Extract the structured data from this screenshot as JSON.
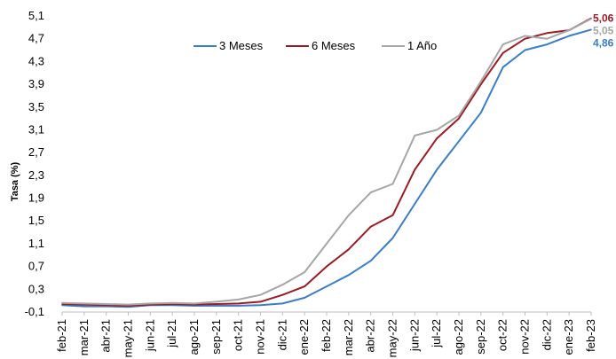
{
  "chart_data": {
    "type": "line",
    "ylabel": "Tasa (%)",
    "xlabel": "",
    "ylim": [
      -0.1,
      5.1
    ],
    "yticks": [
      "-0,1",
      "0,3",
      "0,7",
      "1,1",
      "1,5",
      "1,9",
      "2,3",
      "2,7",
      "3,1",
      "3,5",
      "3,9",
      "4,3",
      "4,7",
      "5,1"
    ],
    "x": [
      "feb-21",
      "mar-21",
      "abr-21",
      "may-21",
      "jun-21",
      "jul-21",
      "ago-21",
      "sep-21",
      "oct-21",
      "nov-21",
      "dic-21",
      "ene-22",
      "feb-22",
      "mar-22",
      "abr-22",
      "may-22",
      "jun-22",
      "jul-22",
      "ago-22",
      "sep-22",
      "oct-22",
      "nov-22",
      "dic-22",
      "ene-23",
      "feb-23"
    ],
    "legend_position": "top-right",
    "grid": false,
    "series": [
      {
        "name": "3 Meses",
        "color": "#3a7dc9",
        "end_label": "4,86",
        "values": [
          0.02,
          0.0,
          0.0,
          -0.01,
          0.02,
          0.02,
          0.01,
          0.01,
          0.01,
          0.02,
          0.05,
          0.15,
          0.35,
          0.55,
          0.8,
          1.2,
          1.8,
          2.4,
          2.9,
          3.4,
          4.2,
          4.5,
          4.6,
          4.75,
          4.86
        ]
      },
      {
        "name": "6 Meses",
        "color": "#9b1b24",
        "end_label": "5,06",
        "values": [
          0.04,
          0.03,
          0.02,
          0.01,
          0.03,
          0.04,
          0.03,
          0.04,
          0.05,
          0.08,
          0.2,
          0.35,
          0.7,
          1.0,
          1.4,
          1.6,
          2.4,
          2.95,
          3.3,
          3.9,
          4.45,
          4.7,
          4.8,
          4.85,
          5.06
        ]
      },
      {
        "name": "1 Año",
        "color": "#a6a6a6",
        "end_label": "5,05",
        "values": [
          0.06,
          0.05,
          0.04,
          0.03,
          0.05,
          0.06,
          0.05,
          0.08,
          0.12,
          0.2,
          0.38,
          0.6,
          1.1,
          1.6,
          2.0,
          2.15,
          3.0,
          3.1,
          3.35,
          3.95,
          4.6,
          4.75,
          4.7,
          4.85,
          5.05
        ]
      }
    ]
  }
}
